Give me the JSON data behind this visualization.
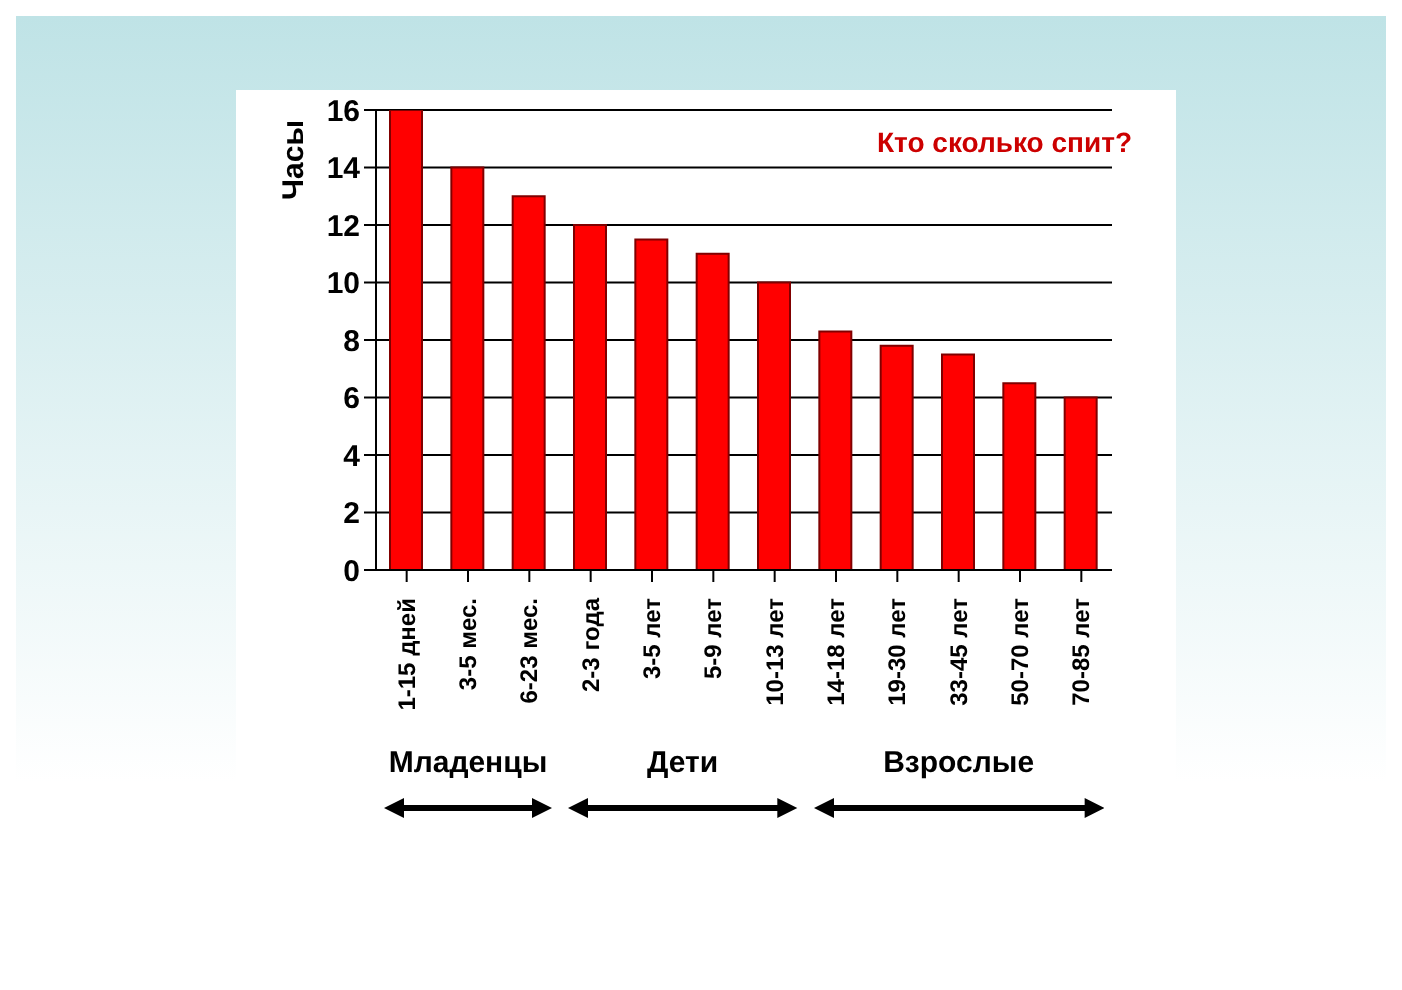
{
  "chart_data": {
    "type": "bar",
    "title": "Кто сколько спит?",
    "ylabel": "Часы",
    "categories": [
      "1-15 дней",
      "3-5 мес.",
      "6-23 мес.",
      "2-3 года",
      "3-5 лет",
      "5-9 лет",
      "10-13 лет",
      "14-18 лет",
      "19-30 лет",
      "33-45 лет",
      "50-70 лет",
      "70-85 лет"
    ],
    "values": [
      16,
      14,
      13,
      12,
      11.5,
      11,
      10,
      8.3,
      7.8,
      7.5,
      6.5,
      6
    ],
    "color": "#ff0000",
    "ylim": [
      0,
      16
    ],
    "yticks": [
      0,
      2,
      4,
      6,
      8,
      10,
      12,
      14,
      16
    ],
    "grid": "y",
    "annotations": [
      "Младенцы",
      "Дети",
      "Взрослые"
    ]
  }
}
